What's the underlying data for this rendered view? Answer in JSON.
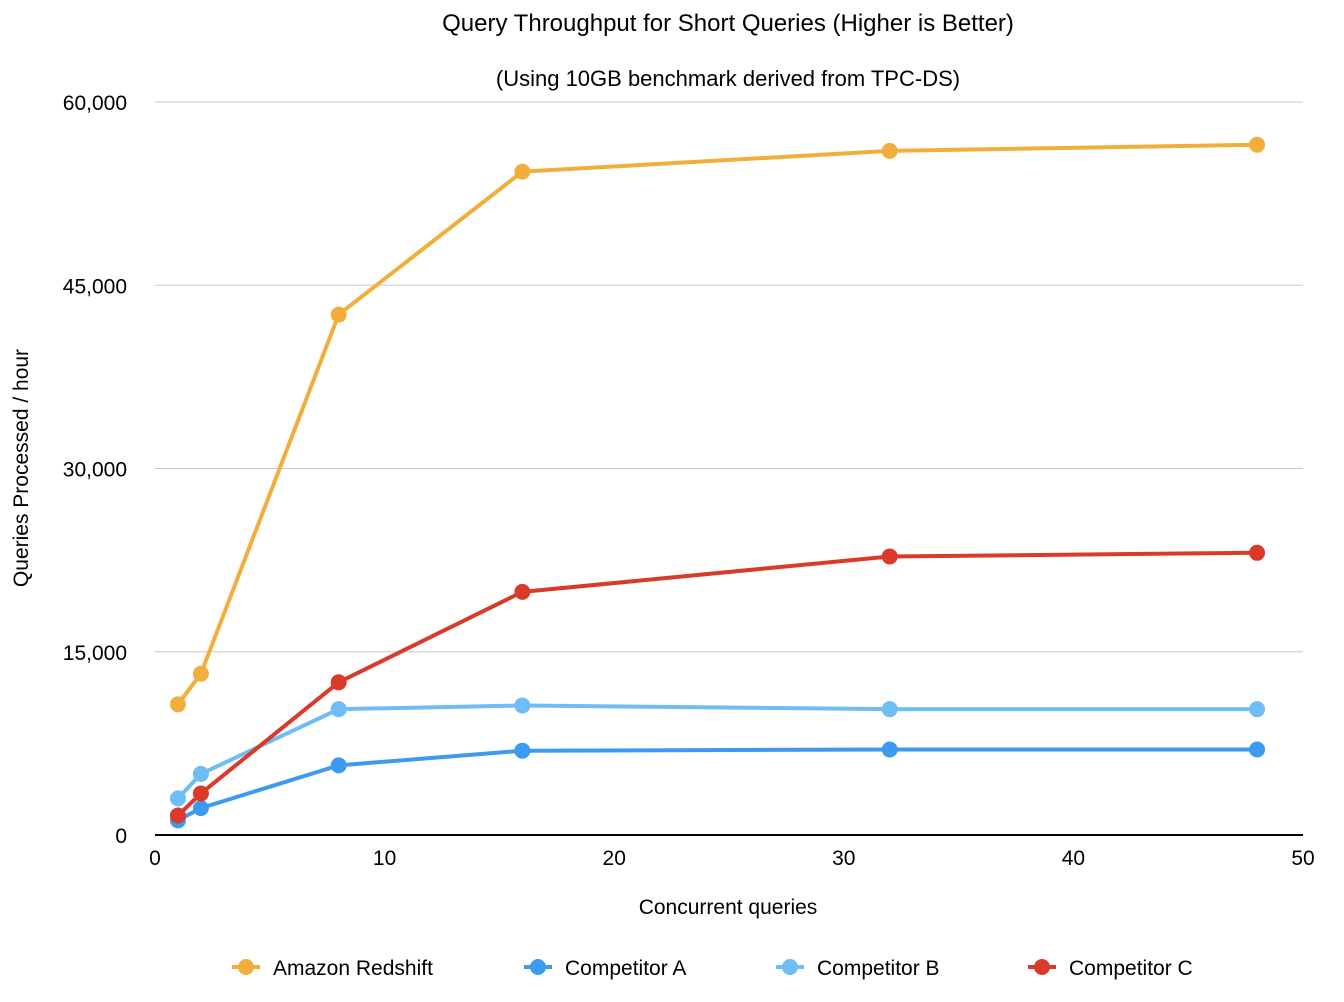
{
  "chart_data": {
    "type": "line",
    "title": "Query Throughput for Short Queries (Higher is Better)",
    "subtitle": "(Using 10GB benchmark derived from TPC-DS)",
    "xlabel": "Concurrent queries",
    "ylabel": "Queries Processed / hour",
    "xlim": [
      0,
      50
    ],
    "ylim": [
      0,
      60000
    ],
    "xticks": [
      0,
      10,
      20,
      30,
      40,
      50
    ],
    "xtick_labels": [
      "0",
      "10",
      "20",
      "30",
      "40",
      "50"
    ],
    "yticks": [
      0,
      15000,
      30000,
      45000,
      60000
    ],
    "ytick_labels": [
      "0",
      "15,000",
      "30,000",
      "45,000",
      "60,000"
    ],
    "grid": "horizontal",
    "legend_position": "bottom",
    "x": [
      1,
      2,
      8,
      16,
      32,
      48
    ],
    "series": [
      {
        "name": "Amazon Redshift",
        "color": "#F2AE3B",
        "values": [
          10700,
          13200,
          42600,
          54300,
          56000,
          56500
        ]
      },
      {
        "name": "Competitor A",
        "color": "#3C9AF1",
        "values": [
          1200,
          2200,
          5700,
          6900,
          7000,
          7000
        ]
      },
      {
        "name": "Competitor B",
        "color": "#6EBDF7",
        "values": [
          3000,
          5000,
          10300,
          10600,
          10300,
          10300
        ]
      },
      {
        "name": "Competitor C",
        "color": "#DA3A29",
        "values": [
          1600,
          3400,
          12500,
          19900,
          22800,
          23100
        ]
      }
    ]
  }
}
